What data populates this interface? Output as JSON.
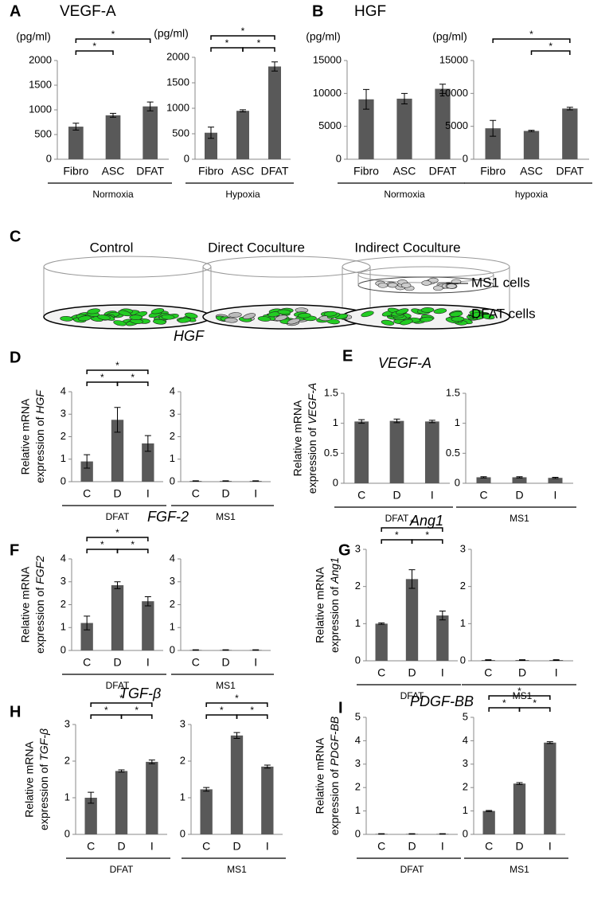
{
  "chart_data": [
    {
      "type": "bar",
      "panel": "A",
      "title": "VEGF-A",
      "unit": "(pg/ml)",
      "group": "Normoxia",
      "categories": [
        "Fibro",
        "ASC",
        "DFAT"
      ],
      "values": [
        660,
        890,
        1070
      ],
      "errors": [
        70,
        40,
        90
      ],
      "color": "#595959",
      "ylim": [
        0,
        2000
      ],
      "yticks": [
        0,
        500,
        1000,
        1500,
        2000
      ],
      "significance": [
        {
          "pair": [
            0,
            1
          ],
          "label": "*"
        },
        {
          "pair": [
            0,
            2
          ],
          "label": "*"
        }
      ]
    },
    {
      "type": "bar",
      "unit": "(pg/ml)",
      "group": "Hypoxia",
      "categories": [
        "Fibro",
        "ASC",
        "DFAT"
      ],
      "values": [
        520,
        950,
        1820
      ],
      "errors": [
        110,
        20,
        90
      ],
      "color": "#595959",
      "ylim": [
        0,
        2000
      ],
      "yticks": [
        0,
        500,
        1000,
        1500,
        2000
      ],
      "significance": [
        {
          "pair": [
            0,
            2
          ],
          "label": "*"
        },
        {
          "pair": [
            0,
            1
          ],
          "label": "*"
        },
        {
          "pair": [
            1,
            2
          ],
          "label": "*"
        }
      ]
    },
    {
      "type": "bar",
      "panel": "B",
      "title": "HGF",
      "unit": "(pg/ml)",
      "group": "Normoxia",
      "categories": [
        "Fibro",
        "ASC",
        "DFAT"
      ],
      "values": [
        9100,
        9200,
        10700
      ],
      "errors": [
        1500,
        800,
        700
      ],
      "color": "#595959",
      "ylim": [
        0,
        15000
      ],
      "yticks": [
        0,
        5000,
        10000,
        15000
      ],
      "significance": []
    },
    {
      "type": "bar",
      "unit": "(pg/ml)",
      "group": "hypoxia",
      "categories": [
        "Fibro",
        "ASC",
        "DFAT"
      ],
      "values": [
        4700,
        4300,
        7700
      ],
      "errors": [
        1200,
        100,
        200
      ],
      "color": "#595959",
      "ylim": [
        0,
        15000
      ],
      "yticks": [
        0,
        5000,
        10000,
        15000
      ],
      "significance": [
        {
          "pair": [
            0,
            2
          ],
          "label": "*"
        },
        {
          "pair": [
            1,
            2
          ],
          "label": "*"
        }
      ]
    },
    {
      "type": "bar",
      "panel": "D",
      "title": "HGF",
      "ylabel": [
        "Relative mRNA",
        "expression of",
        "HGF"
      ],
      "group": "DFAT",
      "categories": [
        "C",
        "D",
        "I"
      ],
      "values": [
        0.9,
        2.75,
        1.7
      ],
      "errors": [
        0.3,
        0.55,
        0.35
      ],
      "color": "#595959",
      "ylim": [
        0,
        4
      ],
      "yticks": [
        0,
        1,
        2,
        3,
        4
      ],
      "significance": [
        {
          "pair": [
            0,
            2
          ],
          "label": "*"
        },
        {
          "pair": [
            0,
            1
          ],
          "label": "*"
        },
        {
          "pair": [
            1,
            2
          ],
          "label": "*"
        }
      ]
    },
    {
      "type": "bar",
      "group": "MS1",
      "categories": [
        "C",
        "D",
        "I"
      ],
      "values": [
        0.03,
        0.03,
        0.03
      ],
      "errors": [
        0.01,
        0.01,
        0.01
      ],
      "color": "#595959",
      "ylim": [
        0,
        4
      ],
      "yticks": [
        0,
        1,
        2,
        3,
        4
      ],
      "significance": []
    },
    {
      "type": "bar",
      "panel": "E",
      "title": "VEGF-A",
      "ylabel": [
        "Relative mRNA",
        "expression of",
        "VEGF-A"
      ],
      "group": "DFAT",
      "categories": [
        "C",
        "D",
        "I"
      ],
      "values": [
        1.03,
        1.04,
        1.03
      ],
      "errors": [
        0.03,
        0.03,
        0.02
      ],
      "color": "#595959",
      "ylim": [
        0,
        1.5
      ],
      "yticks": [
        0,
        0.5,
        1,
        1.5
      ],
      "significance": []
    },
    {
      "type": "bar",
      "group": "MS1",
      "categories": [
        "C",
        "D",
        "I"
      ],
      "values": [
        0.1,
        0.1,
        0.09
      ],
      "errors": [
        0.01,
        0.01,
        0.01
      ],
      "color": "#595959",
      "ylim": [
        0,
        1.5
      ],
      "yticks": [
        0,
        0.5,
        1,
        1.5
      ],
      "significance": []
    },
    {
      "type": "bar",
      "panel": "F",
      "title": "FGF-2",
      "ylabel": [
        "Relative mRNA",
        "expression of",
        "FGF2"
      ],
      "group": "DFAT",
      "categories": [
        "C",
        "D",
        "I"
      ],
      "values": [
        1.2,
        2.85,
        2.15
      ],
      "errors": [
        0.3,
        0.15,
        0.2
      ],
      "color": "#595959",
      "ylim": [
        0,
        4
      ],
      "yticks": [
        0,
        1,
        2,
        3,
        4
      ],
      "significance": [
        {
          "pair": [
            0,
            2
          ],
          "label": "*"
        },
        {
          "pair": [
            0,
            1
          ],
          "label": "*"
        },
        {
          "pair": [
            1,
            2
          ],
          "label": "*"
        }
      ]
    },
    {
      "type": "bar",
      "group": "MS1",
      "categories": [
        "C",
        "D",
        "I"
      ],
      "values": [
        0.02,
        0.02,
        0.02
      ],
      "errors": [
        0.01,
        0.01,
        0.01
      ],
      "color": "#595959",
      "ylim": [
        0,
        4
      ],
      "yticks": [
        0,
        1,
        2,
        3,
        4
      ],
      "significance": []
    },
    {
      "type": "bar",
      "panel": "G",
      "title": "Ang1",
      "ylabel": [
        "Relative mRNA",
        "expression of",
        "Ang1"
      ],
      "group": "DFAT",
      "categories": [
        "C",
        "D",
        "I"
      ],
      "values": [
        1,
        2.2,
        1.22
      ],
      "errors": [
        0.02,
        0.25,
        0.12
      ],
      "color": "#595959",
      "ylim": [
        0,
        3
      ],
      "yticks": [
        0,
        1,
        2,
        3
      ],
      "significance": [
        {
          "pair": [
            0,
            2
          ],
          "label": "*"
        },
        {
          "pair": [
            0,
            1
          ],
          "label": "*"
        },
        {
          "pair": [
            1,
            2
          ],
          "label": "*"
        }
      ]
    },
    {
      "type": "bar",
      "group": "MS1",
      "categories": [
        "C",
        "D",
        "I"
      ],
      "values": [
        0.02,
        0.02,
        0.02
      ],
      "errors": [
        0.01,
        0.01,
        0.01
      ],
      "color": "#595959",
      "ylim": [
        0,
        3
      ],
      "yticks": [
        0,
        1,
        2,
        3
      ],
      "significance": []
    },
    {
      "type": "bar",
      "panel": "H",
      "title": "TGF-β",
      "ylabel": [
        "Relative mRNA",
        "expression of",
        "TGF-β"
      ],
      "group": "DFAT",
      "categories": [
        "C",
        "D",
        "I"
      ],
      "values": [
        1,
        1.73,
        1.98
      ],
      "errors": [
        0.15,
        0.03,
        0.05
      ],
      "color": "#595959",
      "ylim": [
        0,
        3
      ],
      "yticks": [
        0,
        1,
        2,
        3
      ],
      "significance": [
        {
          "pair": [
            0,
            2
          ],
          "label": "*"
        },
        {
          "pair": [
            0,
            1
          ],
          "label": "*"
        },
        {
          "pair": [
            1,
            2
          ],
          "label": "*"
        }
      ]
    },
    {
      "type": "bar",
      "group": "MS1",
      "categories": [
        "C",
        "D",
        "I"
      ],
      "values": [
        1.23,
        2.7,
        1.85
      ],
      "errors": [
        0.05,
        0.08,
        0.04
      ],
      "color": "#595959",
      "ylim": [
        0,
        3
      ],
      "yticks": [
        0,
        1,
        2,
        3
      ],
      "significance": [
        {
          "pair": [
            0,
            2
          ],
          "label": "*"
        },
        {
          "pair": [
            0,
            1
          ],
          "label": "*"
        },
        {
          "pair": [
            1,
            2
          ],
          "label": "*"
        }
      ]
    },
    {
      "type": "bar",
      "panel": "I",
      "title": "PDGF-BB",
      "ylabel": [
        "Relative mRNA",
        "expression of",
        "PDGF-BB"
      ],
      "group": "DFAT",
      "categories": [
        "C",
        "D",
        "I"
      ],
      "values": [
        0.02,
        0.02,
        0.02
      ],
      "errors": [
        0.01,
        0.01,
        0.01
      ],
      "color": "#595959",
      "ylim": [
        0,
        5
      ],
      "yticks": [
        0,
        1,
        2,
        3,
        4,
        5
      ],
      "significance": []
    },
    {
      "type": "bar",
      "group": "MS1",
      "categories": [
        "C",
        "D",
        "I"
      ],
      "values": [
        1,
        2.17,
        3.92
      ],
      "errors": [
        0.02,
        0.04,
        0.04
      ],
      "color": "#595959",
      "ylim": [
        0,
        5
      ],
      "yticks": [
        0,
        1,
        2,
        3,
        4,
        5
      ],
      "significance": [
        {
          "pair": [
            0,
            2
          ],
          "label": "*"
        },
        {
          "pair": [
            0,
            1
          ],
          "label": "*"
        },
        {
          "pair": [
            1,
            2
          ],
          "label": "*"
        }
      ]
    }
  ],
  "diagram": {
    "panel": "C",
    "conditions": [
      "Control",
      "Direct Coculture",
      "Indirect Coculture"
    ],
    "callouts": [
      "MS1 cells",
      "DFAT cells"
    ]
  }
}
